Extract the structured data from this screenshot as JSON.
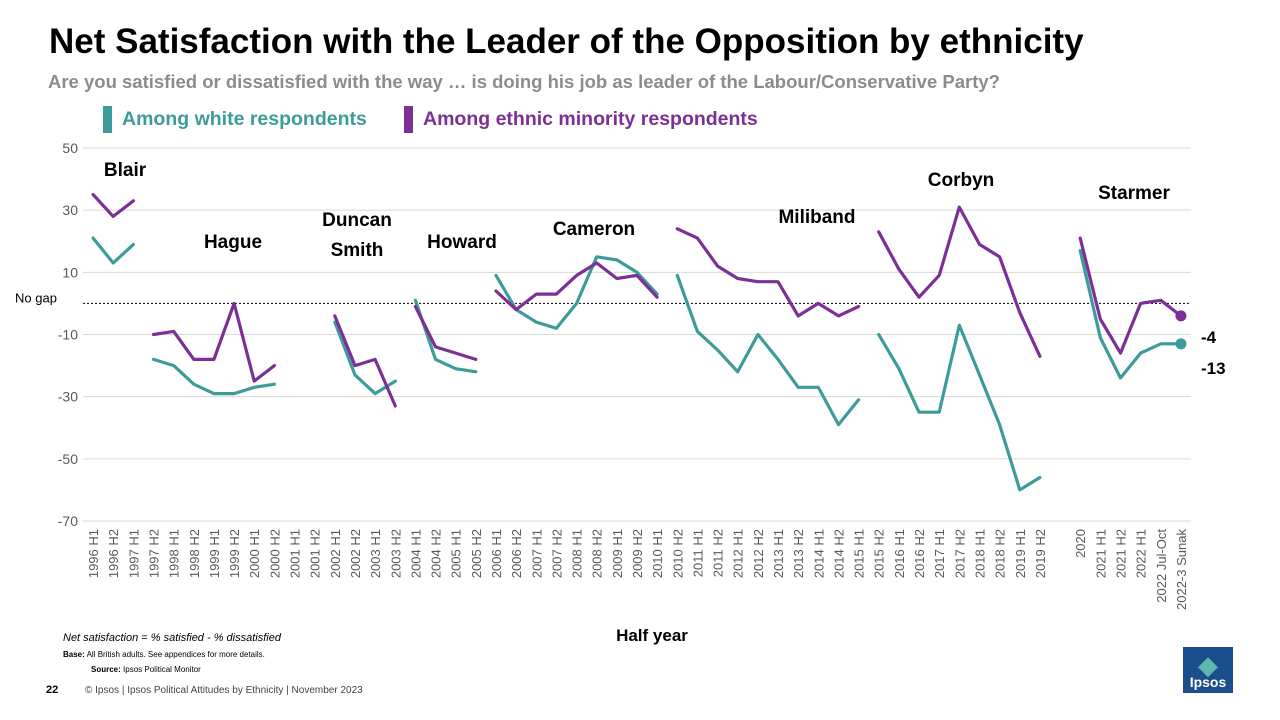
{
  "header": {
    "title": "Net Satisfaction with the Leader of the Opposition by ethnicity",
    "subtitle": "Are you satisfied or dissatisfied with the way … is doing his job as leader of the Labour/Conservative Party?"
  },
  "colors": {
    "white": "#3d9c9a",
    "minority": "#7c2f95",
    "grid": "#d9d9d9",
    "axis_text": "#595959"
  },
  "chart_data": {
    "type": "line",
    "title": "Net Satisfaction with the Leader of the Opposition by ethnicity",
    "xlabel": "Half year",
    "ylabel": "",
    "ylim": [
      -70,
      50
    ],
    "yticks": [
      50,
      30,
      10,
      -10,
      -30,
      -50,
      -70
    ],
    "reference_line": {
      "value": 0,
      "label": "No gap"
    },
    "categories": [
      "1996 H1",
      "1996 H2",
      "1997 H1",
      "1997 H2",
      "1998 H1",
      "1998 H2",
      "1999 H1",
      "1999 H2",
      "2000 H1",
      "2000 H2",
      "2001 H1",
      "2001 H2",
      "2002 H1",
      "2002 H2",
      "2003 H1",
      "2003 H2",
      "2004 H1",
      "2004 H2",
      "2005 H1",
      "2005 H2",
      "2006 H1",
      "2006 H2",
      "2007 H1",
      "2007 H2",
      "2008 H1",
      "2008 H2",
      "2009 H1",
      "2009 H2",
      "2010 H1",
      "2010 H2",
      "2011 H1",
      "2011 H2",
      "2012 H1",
      "2012 H2",
      "2013 H1",
      "2013 H2",
      "2014 H1",
      "2014 H2",
      "2015 H1",
      "2015 H2",
      "2016 H1",
      "2016 H2",
      "2017 H1",
      "2017 H2",
      "2018 H1",
      "2018 H2",
      "2019 H1",
      "2019 H2",
      "",
      "2020",
      "2021 H1",
      "2021 H2",
      "2022 H1",
      "2022 Jul-Oct",
      "2022-3 Sunak"
    ],
    "series": [
      {
        "name": "Among white respondents",
        "color": "#3d9c9a",
        "values": [
          21,
          13,
          19,
          -18,
          -20,
          -26,
          -29,
          -29,
          -27,
          -26,
          null,
          null,
          -6,
          -23,
          -29,
          -25,
          1,
          -18,
          -21,
          -22,
          9,
          -2,
          -6,
          -8,
          0,
          15,
          14,
          10,
          3,
          9,
          -9,
          -15,
          -22,
          -10,
          -18,
          -27,
          -27,
          -39,
          -31,
          -10,
          -21,
          -35,
          -35,
          -7,
          -23,
          -39,
          -60,
          -56,
          null,
          17,
          -11,
          -24,
          -16,
          -13,
          -13
        ]
      },
      {
        "name": "Among ethnic minority respondents",
        "color": "#7c2f95",
        "values": [
          35,
          28,
          33,
          -10,
          -9,
          -18,
          -18,
          0,
          -25,
          -20,
          null,
          null,
          -4,
          -20,
          -18,
          -33,
          -1,
          -14,
          -16,
          -18,
          4,
          -2,
          3,
          3,
          9,
          13,
          8,
          9,
          2,
          24,
          21,
          12,
          8,
          7,
          7,
          -4,
          0,
          -4,
          -1,
          23,
          11,
          2,
          9,
          31,
          19,
          15,
          -3,
          -17,
          null,
          21,
          -5,
          -16,
          0,
          1,
          -4
        ]
      }
    ],
    "segments": [
      [
        0,
        2
      ],
      [
        3,
        9
      ],
      [
        12,
        15
      ],
      [
        16,
        19
      ],
      [
        20,
        28
      ],
      [
        29,
        38
      ],
      [
        39,
        47
      ],
      [
        49,
        54
      ]
    ],
    "leaders": [
      {
        "name": "Blair",
        "segment": 0
      },
      {
        "name": "Hague",
        "segment": 1
      },
      {
        "name": "Duncan Smith",
        "segment": 2
      },
      {
        "name": "Howard",
        "segment": 3
      },
      {
        "name": "Cameron",
        "segment": 4
      },
      {
        "name": "Miliband",
        "segment": 5
      },
      {
        "name": "Corbyn",
        "segment": 6
      },
      {
        "name": "Starmer",
        "segment": 7
      }
    ],
    "end_labels": {
      "minority": "-4",
      "white": "-13"
    }
  },
  "legend": {
    "white": "Among white respondents",
    "minority": "Among ethnic minority respondents"
  },
  "footer": {
    "note": "Net satisfaction = % satisfied - % dissatisfied",
    "base_label": "Base:",
    "base": "All British adults. See appendices for more details.",
    "source_label": "Source:",
    "source": "Ipsos Political Monitor",
    "page_number": "22",
    "copyright": "© Ipsos | Ipsos Political Attitudes by Ethnicity | November 2023",
    "logo_text": "Ipsos"
  }
}
